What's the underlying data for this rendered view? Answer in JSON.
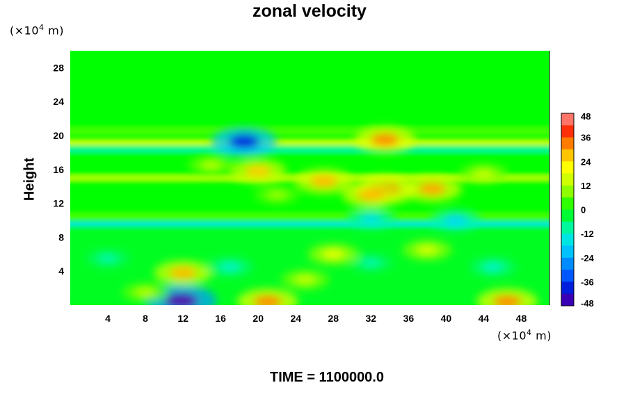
{
  "chart_data": {
    "type": "heatmap",
    "title": "zonal velocity",
    "ylabel": "Height",
    "x_unit": {
      "prefix": "(×10",
      "exp": "4",
      "suffix": " m)"
    },
    "y_unit": {
      "prefix": "(×10",
      "exp": "4",
      "suffix": " m)"
    },
    "xlim": [
      0,
      51
    ],
    "ylim": [
      0,
      30
    ],
    "x_ticks": [
      4,
      8,
      12,
      16,
      20,
      24,
      28,
      32,
      36,
      40,
      44,
      48
    ],
    "y_ticks": [
      4,
      8,
      12,
      16,
      20,
      24,
      28
    ],
    "colorbar": {
      "min": -48,
      "max": 48,
      "step": 6,
      "ticks": [
        48,
        36,
        24,
        12,
        0,
        -12,
        -24,
        -36,
        -48
      ]
    },
    "bands": [
      {
        "y": [
          21,
          30
        ],
        "value": 0
      },
      {
        "y": [
          20,
          21
        ],
        "value": 4
      },
      {
        "y": [
          18.8,
          19.6
        ],
        "value": 12
      },
      {
        "y": [
          17.8,
          18.8
        ],
        "value": -8
      },
      {
        "y": [
          14.5,
          15.5
        ],
        "value": 10
      },
      {
        "y": [
          10,
          11
        ],
        "value": 4
      },
      {
        "y": [
          9.2,
          9.9
        ],
        "value": -14
      },
      {
        "y": [
          0,
          9
        ],
        "value": -2
      }
    ],
    "features": [
      {
        "x": 11.8,
        "y": 0.5,
        "value": -46
      },
      {
        "x": 12,
        "y": 3.8,
        "value": 28
      },
      {
        "x": 21,
        "y": 0.4,
        "value": 32
      },
      {
        "x": 46.5,
        "y": 0.4,
        "value": 32
      },
      {
        "x": 20,
        "y": 15.8,
        "value": 26
      },
      {
        "x": 18.5,
        "y": 19.3,
        "value": -38
      },
      {
        "x": 33.5,
        "y": 19.5,
        "value": 32
      },
      {
        "x": 33.5,
        "y": 13.6,
        "value": 36
      },
      {
        "x": 32,
        "y": 13,
        "value": 28
      },
      {
        "x": 27,
        "y": 14.6,
        "value": 28
      },
      {
        "x": 38.5,
        "y": 13.7,
        "value": 30
      },
      {
        "x": 41,
        "y": 10,
        "value": -18
      },
      {
        "x": 32,
        "y": 10.2,
        "value": -16
      },
      {
        "x": 17,
        "y": 4.5,
        "value": -12
      },
      {
        "x": 32,
        "y": 5,
        "value": -10
      },
      {
        "x": 45,
        "y": 4.5,
        "value": -12
      },
      {
        "x": 4,
        "y": 5.5,
        "value": -10
      },
      {
        "x": 28,
        "y": 6,
        "value": 18
      },
      {
        "x": 38,
        "y": 6.5,
        "value": 16
      },
      {
        "x": 25,
        "y": 3,
        "value": 14
      },
      {
        "x": 8,
        "y": 1.5,
        "value": 12
      },
      {
        "x": 15,
        "y": 16.5,
        "value": 12
      },
      {
        "x": 22,
        "y": 13,
        "value": 10
      },
      {
        "x": 44,
        "y": 15.5,
        "value": 14
      }
    ],
    "footer": "TIME = 1100000.0"
  }
}
